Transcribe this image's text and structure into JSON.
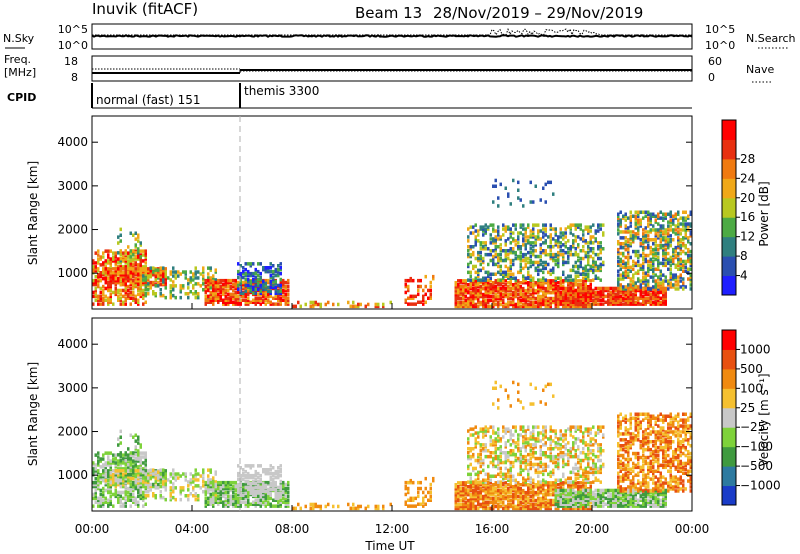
{
  "header": {
    "station": "Inuvik (fitACF)",
    "beam": "Beam 13",
    "dates": "28/Nov/2019 – 29/Nov/2019"
  },
  "strips": {
    "nsky_label": "N.Sky",
    "nsky_left_ticks": [
      "10^5",
      "10^0"
    ],
    "nsky_right_ticks": [
      "10^5",
      "10^0"
    ],
    "nsearch_label": "N.Search",
    "freq_label_1": "Freq.",
    "freq_label_2": "[MHz]",
    "freq_ticks": [
      "18",
      "8"
    ],
    "nave_ticks": [
      "60",
      "0"
    ],
    "nave_label": "Nave",
    "cpid_label": "CPID",
    "cpid_segments": [
      {
        "label": "normal (fast) 151",
        "start_hour": 0,
        "end_hour": 6
      },
      {
        "label": "themis 3300",
        "start_hour": 6,
        "end_hour": 24
      }
    ]
  },
  "chart_data": [
    {
      "type": "heatmap",
      "title": "Power",
      "ylabel": "Slant Range [km]",
      "xlabel": "",
      "xlim": [
        0,
        24
      ],
      "ylim": [
        180,
        4600
      ],
      "yticks": [
        "1000",
        "2000",
        "3000",
        "4000"
      ],
      "colorbar_label": "Power [dB]",
      "colorbar_ticks": [
        "4",
        "8",
        "12",
        "16",
        "20",
        "24",
        "28"
      ],
      "colorbar_colors": [
        "#1f1fff",
        "#2a4fb0",
        "#2f7f7f",
        "#4caa44",
        "#b8c820",
        "#f0a818",
        "#f07a10",
        "#e83010",
        "#ff0000"
      ]
    },
    {
      "type": "heatmap",
      "title": "Velocity",
      "ylabel": "Slant Range [km]",
      "xlabel": "Time UT",
      "xlim": [
        0,
        24
      ],
      "ylim": [
        180,
        4600
      ],
      "yticks": [
        "1000",
        "2000",
        "3000",
        "4000"
      ],
      "xticks": [
        "00:00",
        "04:00",
        "08:00",
        "12:00",
        "16:00",
        "20:00",
        "00:00"
      ],
      "colorbar_label": "Velocity [m s⁻¹]",
      "colorbar_ticks": [
        "1000",
        "500",
        "100",
        "25",
        "−25",
        "−100",
        "−500",
        "−1000"
      ],
      "colorbar_colors": [
        "#1a3cc8",
        "#2d7aa0",
        "#3f9a3f",
        "#7ed23a",
        "#c8c8c8",
        "#f5c030",
        "#f08a10",
        "#e85010",
        "#ff0000"
      ]
    }
  ],
  "colors": {
    "dashed_marker": "#b0b0b0",
    "ground_scatter": "#7f7f7f"
  }
}
